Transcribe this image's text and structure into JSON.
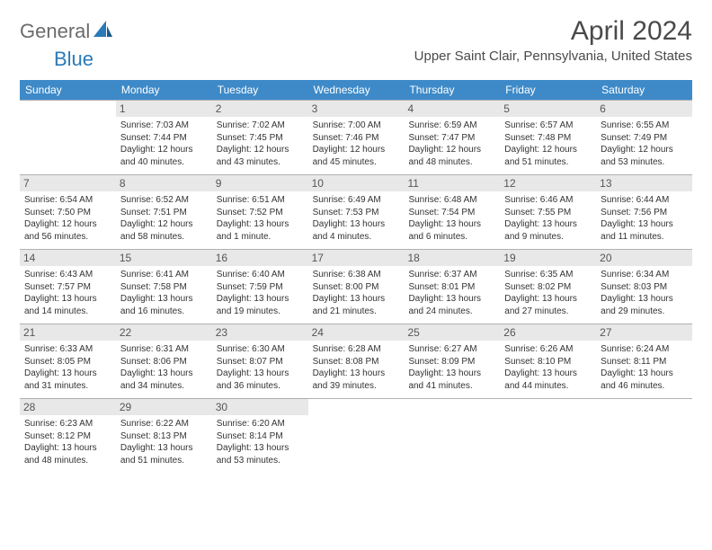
{
  "logo": {
    "text1": "General",
    "text2": "Blue"
  },
  "header": {
    "title": "April 2024",
    "subtitle": "Upper Saint Clair, Pennsylvania, United States"
  },
  "colors": {
    "header_bar": "#3e8ac8",
    "header_text": "#ffffff",
    "daynum_bg": "#e8e8e8",
    "daynum_text": "#555555",
    "body_text": "#333333",
    "rule": "#b0b0b0",
    "logo_gray": "#6b6b6b",
    "logo_blue": "#2a7ab8",
    "title_color": "#4a4a4a"
  },
  "dayheads": [
    "Sunday",
    "Monday",
    "Tuesday",
    "Wednesday",
    "Thursday",
    "Friday",
    "Saturday"
  ],
  "weeks": [
    [
      {
        "blank": true
      },
      {
        "n": "1",
        "sr": "7:03 AM",
        "ss": "7:44 PM",
        "dl": "12 hours and 40 minutes."
      },
      {
        "n": "2",
        "sr": "7:02 AM",
        "ss": "7:45 PM",
        "dl": "12 hours and 43 minutes."
      },
      {
        "n": "3",
        "sr": "7:00 AM",
        "ss": "7:46 PM",
        "dl": "12 hours and 45 minutes."
      },
      {
        "n": "4",
        "sr": "6:59 AM",
        "ss": "7:47 PM",
        "dl": "12 hours and 48 minutes."
      },
      {
        "n": "5",
        "sr": "6:57 AM",
        "ss": "7:48 PM",
        "dl": "12 hours and 51 minutes."
      },
      {
        "n": "6",
        "sr": "6:55 AM",
        "ss": "7:49 PM",
        "dl": "12 hours and 53 minutes."
      }
    ],
    [
      {
        "n": "7",
        "sr": "6:54 AM",
        "ss": "7:50 PM",
        "dl": "12 hours and 56 minutes."
      },
      {
        "n": "8",
        "sr": "6:52 AM",
        "ss": "7:51 PM",
        "dl": "12 hours and 58 minutes."
      },
      {
        "n": "9",
        "sr": "6:51 AM",
        "ss": "7:52 PM",
        "dl": "13 hours and 1 minute."
      },
      {
        "n": "10",
        "sr": "6:49 AM",
        "ss": "7:53 PM",
        "dl": "13 hours and 4 minutes."
      },
      {
        "n": "11",
        "sr": "6:48 AM",
        "ss": "7:54 PM",
        "dl": "13 hours and 6 minutes."
      },
      {
        "n": "12",
        "sr": "6:46 AM",
        "ss": "7:55 PM",
        "dl": "13 hours and 9 minutes."
      },
      {
        "n": "13",
        "sr": "6:44 AM",
        "ss": "7:56 PM",
        "dl": "13 hours and 11 minutes."
      }
    ],
    [
      {
        "n": "14",
        "sr": "6:43 AM",
        "ss": "7:57 PM",
        "dl": "13 hours and 14 minutes."
      },
      {
        "n": "15",
        "sr": "6:41 AM",
        "ss": "7:58 PM",
        "dl": "13 hours and 16 minutes."
      },
      {
        "n": "16",
        "sr": "6:40 AM",
        "ss": "7:59 PM",
        "dl": "13 hours and 19 minutes."
      },
      {
        "n": "17",
        "sr": "6:38 AM",
        "ss": "8:00 PM",
        "dl": "13 hours and 21 minutes."
      },
      {
        "n": "18",
        "sr": "6:37 AM",
        "ss": "8:01 PM",
        "dl": "13 hours and 24 minutes."
      },
      {
        "n": "19",
        "sr": "6:35 AM",
        "ss": "8:02 PM",
        "dl": "13 hours and 27 minutes."
      },
      {
        "n": "20",
        "sr": "6:34 AM",
        "ss": "8:03 PM",
        "dl": "13 hours and 29 minutes."
      }
    ],
    [
      {
        "n": "21",
        "sr": "6:33 AM",
        "ss": "8:05 PM",
        "dl": "13 hours and 31 minutes."
      },
      {
        "n": "22",
        "sr": "6:31 AM",
        "ss": "8:06 PM",
        "dl": "13 hours and 34 minutes."
      },
      {
        "n": "23",
        "sr": "6:30 AM",
        "ss": "8:07 PM",
        "dl": "13 hours and 36 minutes."
      },
      {
        "n": "24",
        "sr": "6:28 AM",
        "ss": "8:08 PM",
        "dl": "13 hours and 39 minutes."
      },
      {
        "n": "25",
        "sr": "6:27 AM",
        "ss": "8:09 PM",
        "dl": "13 hours and 41 minutes."
      },
      {
        "n": "26",
        "sr": "6:26 AM",
        "ss": "8:10 PM",
        "dl": "13 hours and 44 minutes."
      },
      {
        "n": "27",
        "sr": "6:24 AM",
        "ss": "8:11 PM",
        "dl": "13 hours and 46 minutes."
      }
    ],
    [
      {
        "n": "28",
        "sr": "6:23 AM",
        "ss": "8:12 PM",
        "dl": "13 hours and 48 minutes."
      },
      {
        "n": "29",
        "sr": "6:22 AM",
        "ss": "8:13 PM",
        "dl": "13 hours and 51 minutes."
      },
      {
        "n": "30",
        "sr": "6:20 AM",
        "ss": "8:14 PM",
        "dl": "13 hours and 53 minutes."
      },
      {
        "blank": true
      },
      {
        "blank": true
      },
      {
        "blank": true
      },
      {
        "blank": true
      }
    ]
  ],
  "labels": {
    "sunrise": "Sunrise: ",
    "sunset": "Sunset: ",
    "daylight": "Daylight: "
  }
}
